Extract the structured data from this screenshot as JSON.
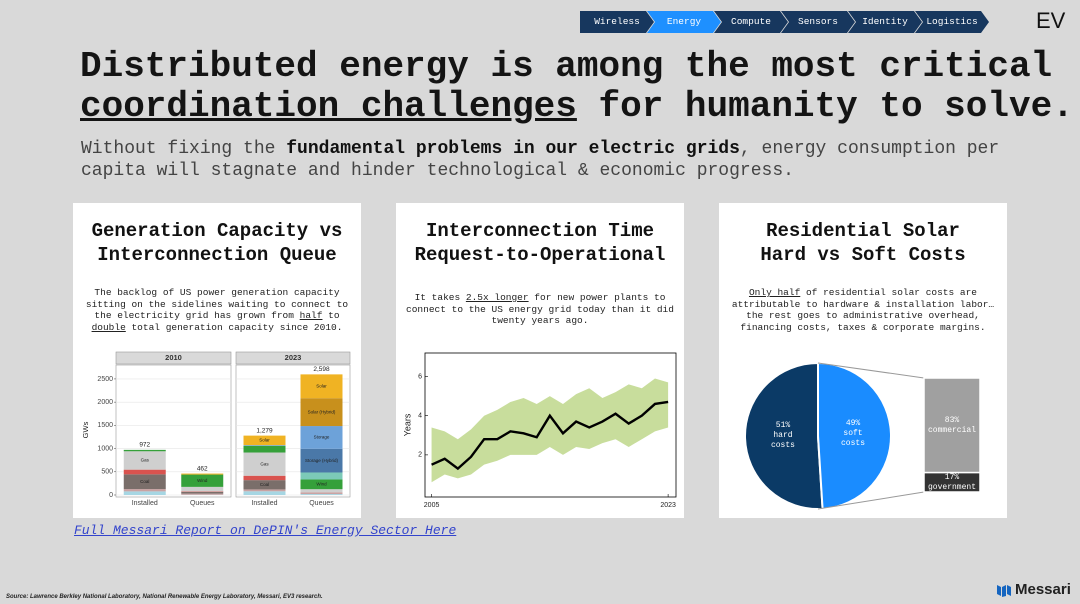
{
  "nav": {
    "items": [
      "Wireless",
      "Energy",
      "Compute",
      "Sensors",
      "Identity",
      "Logistics"
    ],
    "active": "Energy"
  },
  "logo": "EV",
  "title": {
    "line1": "Distributed energy is among the most critical",
    "line2": [
      {
        "text": "coordination challenges",
        "underline": true
      },
      {
        "text": " for humanity to solve."
      }
    ]
  },
  "subtitle": [
    {
      "text": "Without fixing the "
    },
    {
      "text": "fundamental problems in our electric grids",
      "bold": true
    },
    {
      "text": ", energy consumption per capita will stagnate and hinder technological & economic progress."
    }
  ],
  "chart_data": [
    {
      "type": "stacked-bar",
      "title": [
        "Generation Capacity vs",
        "Interconnection Queue"
      ],
      "description": [
        {
          "text": "The backlog of US power generation capacity sitting on the sidelines waiting to connect to the electricity grid has grown from "
        },
        {
          "text": "half",
          "underline": true
        },
        {
          "text": " to "
        },
        {
          "text": "double",
          "underline": true
        },
        {
          "text": " total generation capacity since 2010."
        }
      ],
      "facets": [
        {
          "label": "2010",
          "categories": [
            "Installed",
            "Queues"
          ]
        },
        {
          "label": "2023",
          "categories": [
            "Installed",
            "Queues"
          ]
        }
      ],
      "ylabel": "GWs",
      "ylim": [
        0,
        2800
      ],
      "yticks": [
        0,
        500,
        1000,
        1500,
        2000,
        2500
      ],
      "grid": true,
      "series": [
        {
          "name": "Hydro",
          "color": "#a6d6e3",
          "values": [
            78,
            5,
            80,
            20
          ]
        },
        {
          "name": "Other",
          "color": "#c9a3a3",
          "values": [
            50,
            25,
            40,
            40
          ]
        },
        {
          "name": "Coal",
          "color": "#7a6e6a",
          "values": [
            317,
            40,
            200,
            0
          ]
        },
        {
          "name": "Nuclear",
          "color": "#d9534f",
          "values": [
            101,
            10,
            95,
            0
          ]
        },
        {
          "name": "Gas",
          "color": "#cfcfcf",
          "values": [
            396,
            95,
            500,
            65
          ]
        },
        {
          "name": "Wind",
          "color": "#35a03a",
          "values": [
            30,
            265,
            145,
            210
          ]
        },
        {
          "name": "Offshore Wind",
          "color": "#7ccab8",
          "values": [
            0,
            0,
            0,
            150
          ]
        },
        {
          "name": "Storage (Hybrid)",
          "color": "#4a78a8",
          "values": [
            0,
            0,
            0,
            510
          ]
        },
        {
          "name": "Storage",
          "color": "#6da2d9",
          "values": [
            0,
            0,
            15,
            490
          ]
        },
        {
          "name": "Solar (Hybrid)",
          "color": "#c8901c",
          "values": [
            0,
            0,
            0,
            600
          ]
        },
        {
          "name": "Solar",
          "color": "#f0b323",
          "values": [
            0,
            22,
            204,
            513
          ]
        }
      ],
      "totals": {
        "values": [
          972,
          462,
          1279,
          2598
        ],
        "value_labels": [
          "972",
          "462",
          "1,279",
          "2,598"
        ]
      }
    },
    {
      "type": "line",
      "title": [
        "Interconnection Time",
        "Request-to-Operational"
      ],
      "description": [
        {
          "text": "It takes "
        },
        {
          "text": "2.5x longer",
          "underline": true
        },
        {
          "text": " for new power plants to connect to the US energy grid today than it did twenty years ago."
        }
      ],
      "ylabel": "Years",
      "x": [
        2005,
        2006,
        2007,
        2008,
        2009,
        2010,
        2011,
        2012,
        2013,
        2014,
        2015,
        2016,
        2017,
        2018,
        2019,
        2020,
        2021,
        2022,
        2023
      ],
      "values": [
        1.5,
        1.8,
        1.3,
        1.9,
        2.8,
        2.8,
        3.2,
        3.1,
        2.9,
        4.0,
        3.1,
        3.7,
        3.4,
        3.7,
        4.1,
        3.6,
        4.0,
        4.6,
        4.7
      ],
      "lower": [
        0.6,
        1.0,
        0.8,
        1.0,
        1.5,
        1.7,
        2.0,
        2.0,
        2.0,
        2.4,
        2.0,
        2.4,
        2.3,
        2.6,
        2.8,
        2.4,
        2.8,
        3.2,
        3.4
      ],
      "upper": [
        3.4,
        3.2,
        2.8,
        3.3,
        4.0,
        4.3,
        4.7,
        4.9,
        4.6,
        5.0,
        4.6,
        5.1,
        5.4,
        4.9,
        5.2,
        5.6,
        5.4,
        5.9,
        5.7
      ],
      "color": "#000000",
      "band_color": "#c8dd9c",
      "xlim": [
        2004.5,
        2023.6
      ],
      "xticks": [
        2005,
        2023
      ],
      "ylim": [
        -0.15,
        7.2
      ],
      "yticks": [
        2,
        4,
        6
      ]
    },
    {
      "type": "pie",
      "title": [
        "Residential Solar",
        "Hard vs Soft Costs"
      ],
      "description": [
        {
          "text": "Only half",
          "underline": true
        },
        {
          "text": " of residential solar costs are attributable to hardware & installation labor… the rest goes to administrative overhead, financing costs, taxes & corporate margins."
        }
      ],
      "categories": [
        "hard costs",
        "soft costs"
      ],
      "values": [
        51,
        49
      ],
      "value_labels": [
        "51%",
        "49%"
      ],
      "colors": [
        "#0b3a66",
        "#1a8cff"
      ],
      "breakdown": {
        "categories": [
          "commercial",
          "government"
        ],
        "values": [
          83,
          17
        ],
        "value_labels": [
          "83%",
          "17%"
        ],
        "colors": [
          "#a0a0a0",
          "#333333"
        ]
      }
    }
  ],
  "link": "Full Messari Report on DePIN's Energy Sector Here",
  "source": "Source: Lawrence Berkley National Laboratory, National Renewable Energy Laboratory, Messari, EV3 research.",
  "brand": "Messari"
}
